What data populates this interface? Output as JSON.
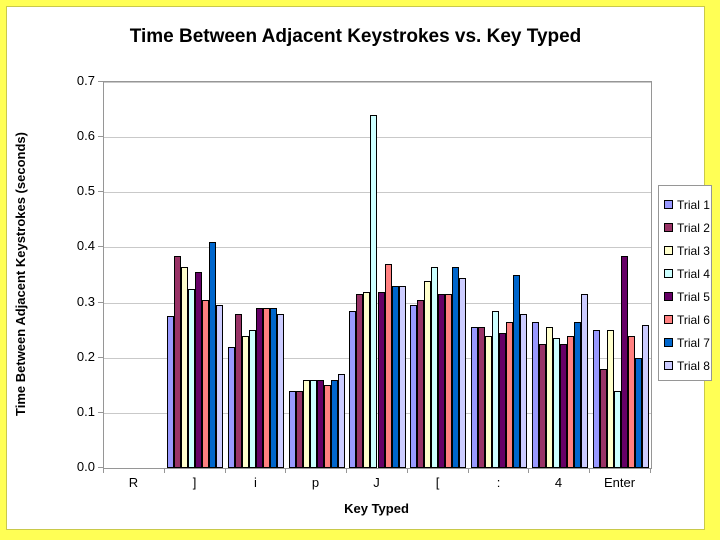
{
  "frame": {
    "background_color": "#FFFF55",
    "panel_border_color": "#C9C94A",
    "panel_background": "#FFFFFF"
  },
  "chart_data": {
    "type": "bar",
    "title": "Time Between Adjacent Keystrokes vs. Key Typed",
    "xlabel": "Key Typed",
    "ylabel": "Time Between Adjacent Keystrokes (seconds)",
    "categories": [
      "R",
      "]",
      "i",
      "p",
      "J",
      "[",
      ":",
      "4",
      "Enter"
    ],
    "ylim": [
      0,
      0.7
    ],
    "ytick_step": 0.1,
    "ytick_labels": [
      "0.0",
      "0.1",
      "0.2",
      "0.3",
      "0.4",
      "0.5",
      "0.6",
      "0.7"
    ],
    "grid": true,
    "legend_position": "right",
    "gridline_color": "#C9C9C9",
    "axis_color": "#969696",
    "series": [
      {
        "name": "Trial 1",
        "color": "#9999FF",
        "values": [
          null,
          0.275,
          0.22,
          0.14,
          0.285,
          0.295,
          0.255,
          0.265,
          0.25
        ]
      },
      {
        "name": "Trial 2",
        "color": "#993366",
        "values": [
          null,
          0.385,
          0.28,
          0.14,
          0.315,
          0.305,
          0.255,
          0.225,
          0.18
        ]
      },
      {
        "name": "Trial 3",
        "color": "#FFFFCC",
        "values": [
          null,
          0.365,
          0.24,
          0.16,
          0.32,
          0.34,
          0.24,
          0.255,
          0.25
        ]
      },
      {
        "name": "Trial 4",
        "color": "#CCFFFF",
        "values": [
          null,
          0.325,
          0.25,
          0.16,
          0.64,
          0.365,
          0.285,
          0.235,
          0.14
        ]
      },
      {
        "name": "Trial 5",
        "color": "#660066",
        "values": [
          null,
          0.355,
          0.29,
          0.16,
          0.32,
          0.315,
          0.245,
          0.225,
          0.385
        ]
      },
      {
        "name": "Trial 6",
        "color": "#FF8080",
        "values": [
          null,
          0.305,
          0.29,
          0.15,
          0.37,
          0.315,
          0.265,
          0.24,
          0.24
        ]
      },
      {
        "name": "Trial 7",
        "color": "#0066CC",
        "values": [
          null,
          0.41,
          0.29,
          0.16,
          0.33,
          0.365,
          0.35,
          0.265,
          0.2
        ]
      },
      {
        "name": "Trial 8",
        "color": "#CCCCFF",
        "values": [
          null,
          0.295,
          0.28,
          0.17,
          0.33,
          0.345,
          0.28,
          0.315,
          0.26
        ]
      }
    ]
  }
}
